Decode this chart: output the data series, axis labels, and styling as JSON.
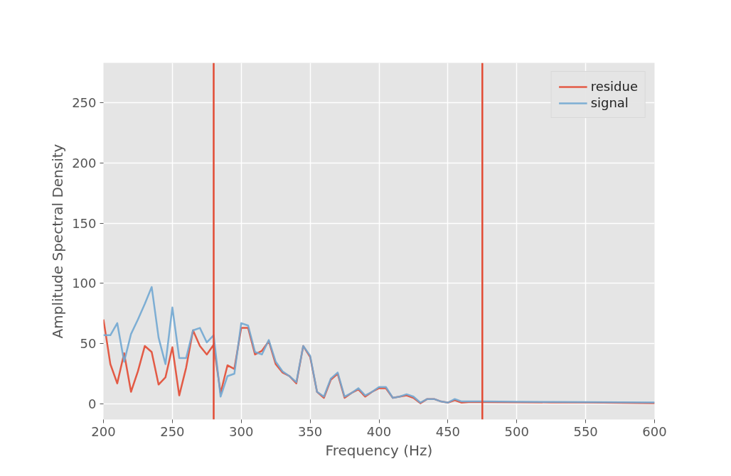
{
  "chart_data": {
    "type": "line",
    "xlabel": "Frequency (Hz)",
    "ylabel": "Amplitude Spectral Density",
    "x": [
      200,
      205,
      210,
      215,
      220,
      225,
      230,
      235,
      240,
      245,
      250,
      255,
      260,
      265,
      270,
      275,
      280,
      285,
      290,
      295,
      300,
      305,
      310,
      315,
      320,
      325,
      330,
      335,
      340,
      345,
      350,
      355,
      360,
      365,
      370,
      375,
      380,
      385,
      390,
      395,
      400,
      405,
      410,
      415,
      420,
      425,
      430,
      435,
      440,
      445,
      450,
      455,
      460,
      465,
      470,
      475,
      500,
      525,
      550,
      575,
      600
    ],
    "series": [
      {
        "name": "residue",
        "color": "#e24a33",
        "values": [
          70,
          33,
          17,
          42,
          10,
          27,
          48,
          43,
          16,
          22,
          47,
          7,
          30,
          61,
          48,
          41,
          49,
          9,
          32,
          29,
          63,
          63,
          41,
          44,
          52,
          33,
          26,
          23,
          17,
          48,
          39,
          10,
          5,
          20,
          25,
          5,
          9,
          12,
          6,
          10,
          13,
          13,
          5,
          6,
          7,
          5,
          0.5,
          4,
          4,
          2,
          1,
          3,
          1,
          1.5,
          1.5,
          1.5,
          1.3,
          1.2,
          1.1,
          0.8,
          0.6
        ]
      },
      {
        "name": "signal",
        "color": "#71a7d1",
        "values": [
          57,
          57,
          67,
          35,
          58,
          70,
          83,
          97,
          55,
          33,
          80,
          38,
          38,
          61,
          63,
          51,
          57,
          6,
          23,
          25,
          67,
          65,
          43,
          41,
          53,
          35,
          27,
          23,
          18,
          48,
          40,
          10,
          6,
          21,
          26,
          6,
          9,
          13,
          7,
          10,
          14,
          14,
          5,
          6,
          8,
          6,
          1,
          4,
          4,
          2,
          1,
          4,
          2,
          2,
          2,
          2,
          1.8,
          1.6,
          1.5,
          1.3,
          1.1
        ]
      }
    ],
    "xlim": [
      200,
      600
    ],
    "ylim": [
      -13,
      283
    ],
    "xticks": [
      200,
      250,
      300,
      350,
      400,
      450,
      500,
      550,
      600
    ],
    "yticks": [
      0,
      50,
      100,
      150,
      200,
      250
    ],
    "ref_lines": [
      {
        "axis": "x",
        "value": 280,
        "color": "#e24a33"
      },
      {
        "axis": "x",
        "value": 475,
        "color": "#e24a33"
      }
    ],
    "grid": true,
    "legend": "top right",
    "marker": "none",
    "line_style": "solid"
  }
}
